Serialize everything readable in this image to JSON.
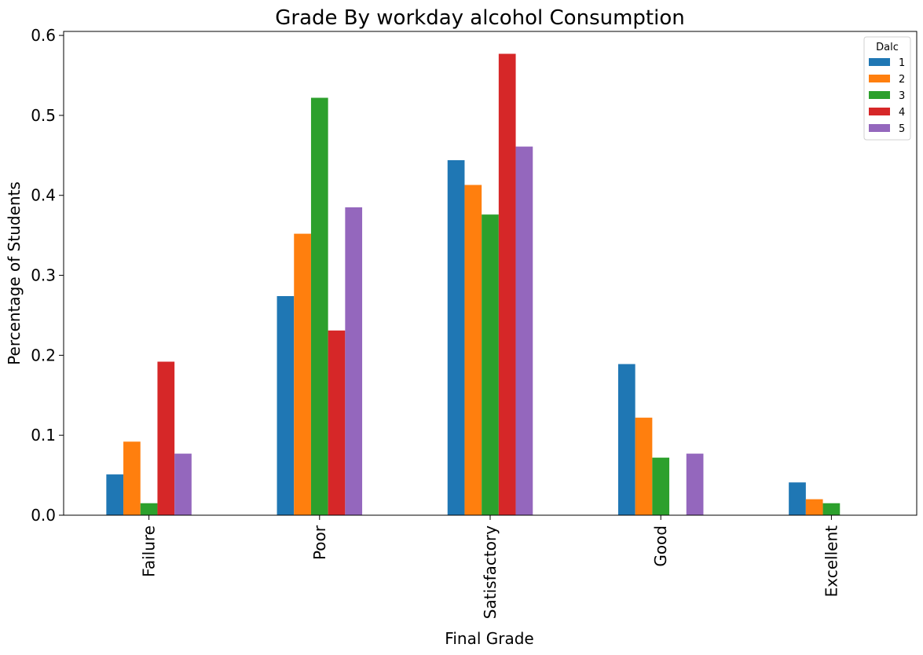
{
  "chart_data": {
    "type": "bar",
    "title": "Grade By workday alcohol Consumption",
    "xlabel": "Final Grade",
    "ylabel": "Percentage of Students",
    "categories": [
      "Failure",
      "Poor",
      "Satisfactory",
      "Good",
      "Excellent"
    ],
    "yticks": [
      "0.0",
      "0.1",
      "0.2",
      "0.3",
      "0.4",
      "0.5",
      "0.6"
    ],
    "ylim": [
      0,
      0.605
    ],
    "grid": false,
    "legend": {
      "title": "Dalc",
      "placement": "top-right"
    },
    "series": [
      {
        "name": "1",
        "color": "#1f77b4",
        "values": [
          0.051,
          0.274,
          0.444,
          0.189,
          0.041
        ]
      },
      {
        "name": "2",
        "color": "#ff7f0e",
        "values": [
          0.092,
          0.352,
          0.413,
          0.122,
          0.02
        ]
      },
      {
        "name": "3",
        "color": "#2ca02c",
        "values": [
          0.015,
          0.522,
          0.376,
          0.072,
          0.015
        ]
      },
      {
        "name": "4",
        "color": "#d62728",
        "values": [
          0.192,
          0.231,
          0.577,
          0.0,
          0.0
        ]
      },
      {
        "name": "5",
        "color": "#9467bd",
        "values": [
          0.077,
          0.385,
          0.461,
          0.077,
          0.0
        ]
      }
    ]
  }
}
